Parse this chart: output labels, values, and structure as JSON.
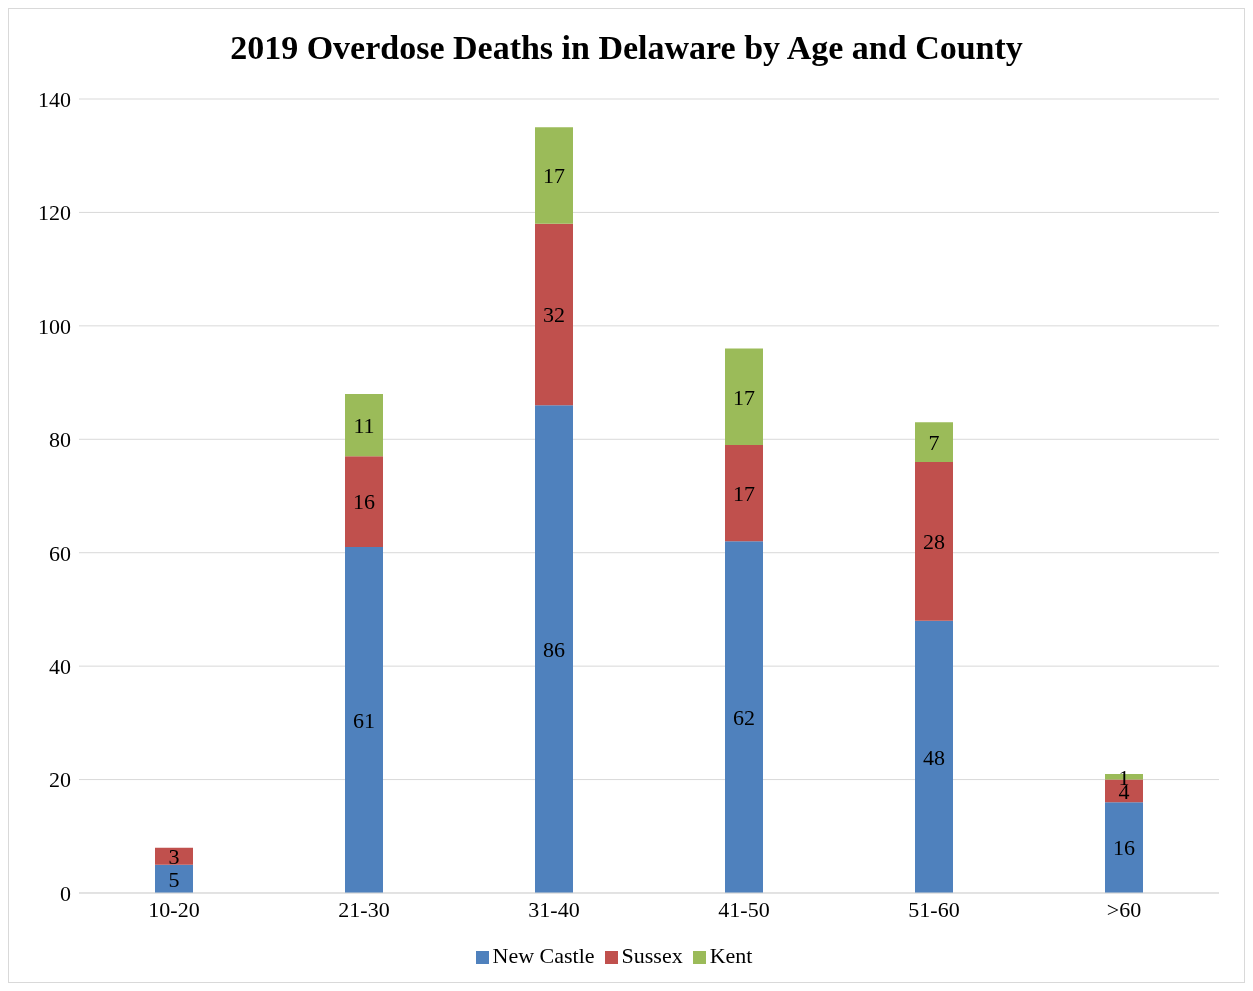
{
  "chart_data": {
    "type": "bar",
    "title": "2019 Overdose Deaths in Delaware by Age and County",
    "categories": [
      "10-20",
      "21-30",
      "31-40",
      "41-50",
      "51-60",
      ">60"
    ],
    "series": [
      {
        "name": "New Castle",
        "color": "#4f81bd",
        "values": [
          5,
          61,
          86,
          62,
          48,
          16
        ]
      },
      {
        "name": "Sussex",
        "color": "#c0504d",
        "values": [
          3,
          16,
          32,
          17,
          28,
          4
        ]
      },
      {
        "name": "Kent",
        "color": "#9bbb59",
        "values": [
          null,
          11,
          17,
          17,
          7,
          1
        ]
      }
    ],
    "stacked": true,
    "data_labels": true,
    "ylim": [
      0,
      140
    ],
    "yticks": [
      0,
      20,
      40,
      60,
      80,
      100,
      120,
      140
    ],
    "grid": "y",
    "legend": "bottom"
  }
}
